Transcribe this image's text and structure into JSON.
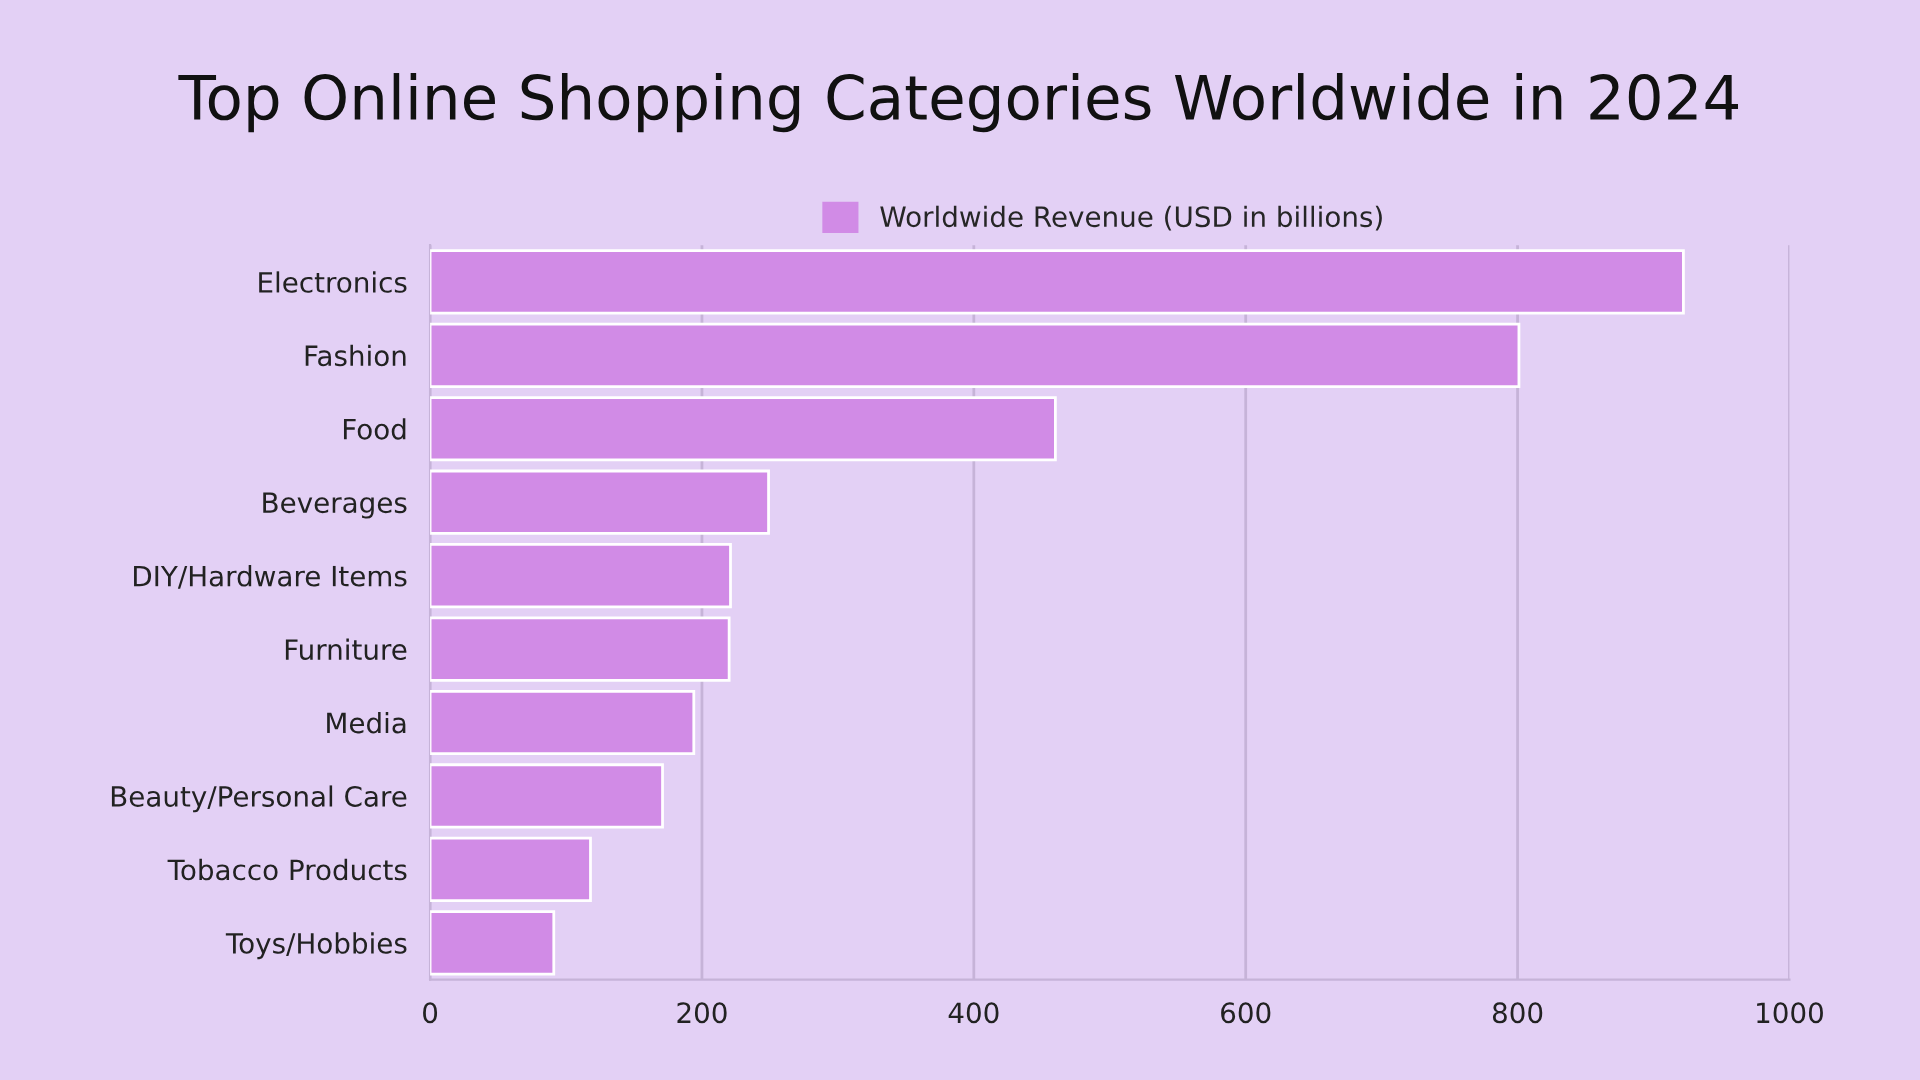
{
  "chart_data": {
    "type": "bar",
    "orientation": "horizontal",
    "title": "Top Online Shopping Categories Worldwide in 2024",
    "categories": [
      "Electronics",
      "Fashion",
      "Food",
      "Beverages",
      "DIY/Hardware Items",
      "Furniture",
      "Media",
      "Beauty/Personal Care",
      "Tobacco Products",
      "Toys/Hobbies"
    ],
    "series": [
      {
        "name": "Worldwide Revenue (USD in billions)",
        "color": "#d18be6",
        "values": [
          922,
          801,
          460,
          249,
          221,
          220,
          194,
          171,
          118,
          91
        ]
      }
    ],
    "xlim": [
      0,
      1000
    ],
    "xticks": [
      0,
      200,
      400,
      600,
      800,
      1000
    ],
    "grid": "x",
    "legend": "top"
  }
}
